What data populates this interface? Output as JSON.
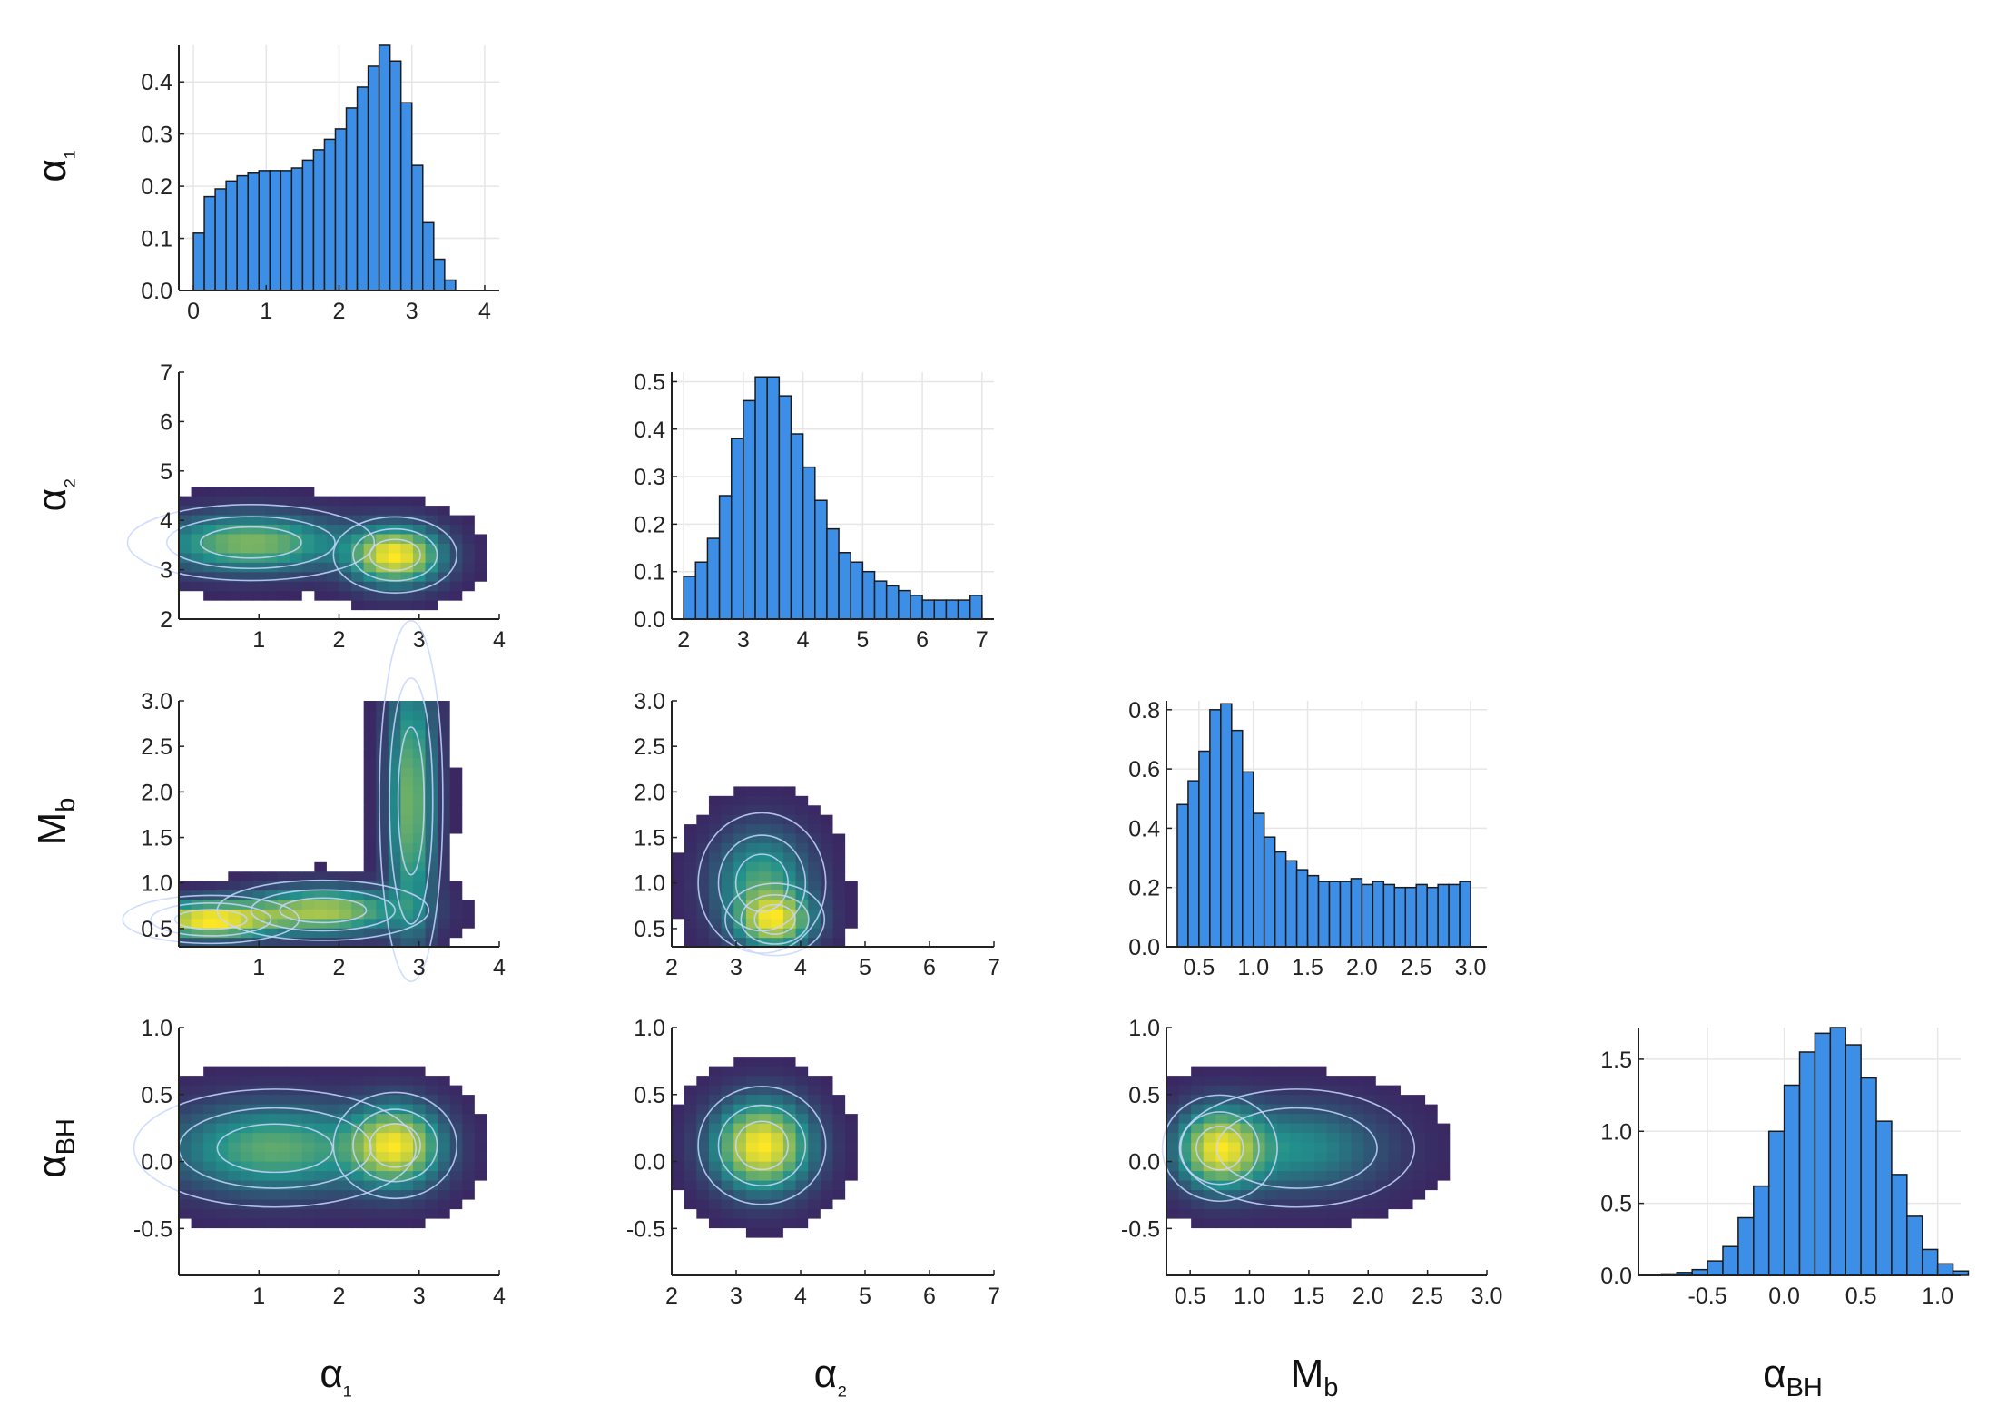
{
  "figure": {
    "type": "corner-plot",
    "colors": {
      "bar_fill": "#3d8ee6",
      "bar_edge": "#1b1b1b",
      "heat_low": "#440154",
      "heat_mid": "#21918c",
      "heat_high": "#fde725",
      "contour": "#c8d6ff",
      "grid": "#e6e6e6"
    },
    "variables": [
      {
        "key": "a1",
        "label": "α₁",
        "base": "α",
        "sub": "₁",
        "range": [
          0,
          4.2
        ]
      },
      {
        "key": "a2",
        "label": "α₂",
        "base": "α",
        "sub": "₂",
        "range": [
          2,
          7
        ]
      },
      {
        "key": "mb",
        "label": "Mb",
        "base": "M",
        "sub": "b",
        "range": [
          0.3,
          3.0
        ]
      },
      {
        "key": "abh",
        "label": "αBH",
        "base": "α",
        "sub": "BH",
        "range": [
          -0.85,
          1.0
        ]
      }
    ]
  },
  "chart_data": [
    {
      "type": "bar",
      "id": "hist-a1",
      "var": "a1",
      "bin_start": 0,
      "bin_width": 0.15,
      "values": [
        0.11,
        0.18,
        0.195,
        0.21,
        0.22,
        0.225,
        0.23,
        0.23,
        0.23,
        0.235,
        0.25,
        0.27,
        0.29,
        0.31,
        0.35,
        0.39,
        0.43,
        0.47,
        0.44,
        0.36,
        0.24,
        0.13,
        0.06,
        0.02
      ],
      "xlim": [
        -0.2,
        4.2
      ],
      "ylim": [
        0,
        0.47
      ],
      "xticks": [
        0,
        1,
        2,
        3,
        4
      ],
      "xtick_labels": [
        "0",
        "1",
        "2",
        "3",
        "4"
      ],
      "yticks": [
        0,
        0.1,
        0.2,
        0.3,
        0.4
      ],
      "ytick_labels": [
        "0.0",
        "0.1",
        "0.2",
        "0.3",
        "0.4"
      ]
    },
    {
      "type": "bar",
      "id": "hist-a2",
      "var": "a2",
      "bin_start": 2,
      "bin_width": 0.2,
      "values": [
        0.09,
        0.12,
        0.17,
        0.26,
        0.38,
        0.46,
        0.51,
        0.51,
        0.47,
        0.39,
        0.32,
        0.25,
        0.19,
        0.14,
        0.12,
        0.1,
        0.08,
        0.07,
        0.06,
        0.05,
        0.04,
        0.04,
        0.04,
        0.04,
        0.05
      ],
      "xlim": [
        1.8,
        7.2
      ],
      "ylim": [
        0,
        0.52
      ],
      "xticks": [
        2,
        3,
        4,
        5,
        6,
        7
      ],
      "xtick_labels": [
        "2",
        "3",
        "4",
        "5",
        "6",
        "7"
      ],
      "yticks": [
        0,
        0.1,
        0.2,
        0.3,
        0.4,
        0.5
      ],
      "ytick_labels": [
        "0.0",
        "0.1",
        "0.2",
        "0.3",
        "0.4",
        "0.5"
      ]
    },
    {
      "type": "bar",
      "id": "hist-mb",
      "var": "mb",
      "bin_start": 0.3,
      "bin_width": 0.1,
      "values": [
        0.48,
        0.56,
        0.66,
        0.8,
        0.82,
        0.73,
        0.59,
        0.45,
        0.37,
        0.32,
        0.29,
        0.26,
        0.24,
        0.22,
        0.22,
        0.22,
        0.23,
        0.21,
        0.22,
        0.21,
        0.2,
        0.2,
        0.21,
        0.2,
        0.21,
        0.21,
        0.22
      ],
      "xlim": [
        0.2,
        3.15
      ],
      "ylim": [
        0,
        0.83
      ],
      "xticks": [
        0.5,
        1.0,
        1.5,
        2.0,
        2.5,
        3.0
      ],
      "xtick_labels": [
        "0.5",
        "1.0",
        "1.5",
        "2.0",
        "2.5",
        "3.0"
      ],
      "yticks": [
        0,
        0.2,
        0.4,
        0.6,
        0.8
      ],
      "ytick_labels": [
        "0.0",
        "0.2",
        "0.4",
        "0.6",
        "0.8"
      ]
    },
    {
      "type": "bar",
      "id": "hist-abh",
      "var": "abh",
      "bin_start": -0.9,
      "bin_width": 0.1,
      "values": [
        0.0,
        0.01,
        0.02,
        0.04,
        0.1,
        0.2,
        0.4,
        0.62,
        1.0,
        1.32,
        1.55,
        1.68,
        1.72,
        1.6,
        1.37,
        1.07,
        0.7,
        0.41,
        0.18,
        0.08,
        0.03
      ],
      "xlim": [
        -0.95,
        1.15
      ],
      "ylim": [
        0,
        1.72
      ],
      "xticks": [
        -0.5,
        0,
        0.5,
        1.0
      ],
      "xtick_labels": [
        "-0.5",
        "0.0",
        "0.5",
        "1.0"
      ],
      "yticks": [
        0,
        0.5,
        1.0,
        1.5
      ],
      "ytick_labels": [
        "0.0",
        "0.5",
        "1.0",
        "1.5"
      ]
    },
    {
      "type": "heatmap",
      "id": "hm-a2-a1",
      "x": "a1",
      "y": "a2",
      "peaks": [
        {
          "x": 2.7,
          "y": 3.3,
          "sx": 0.35,
          "sy": 0.35,
          "amp": 1.0
        },
        {
          "x": 0.9,
          "y": 3.55,
          "sx": 0.7,
          "sy": 0.35,
          "amp": 0.6
        }
      ],
      "xlim": [
        0,
        4
      ],
      "ylim": [
        2,
        7
      ],
      "xticks": [
        1,
        2,
        3,
        4
      ],
      "xtick_labels": [
        "1",
        "2",
        "3",
        "4"
      ],
      "yticks": [
        2,
        3,
        4,
        5,
        6,
        7
      ],
      "ytick_labels": [
        "2",
        "3",
        "4",
        "5",
        "6",
        "7"
      ]
    },
    {
      "type": "heatmap",
      "id": "hm-mb-a1",
      "x": "a1",
      "y": "mb",
      "peaks": [
        {
          "x": 0.4,
          "y": 0.6,
          "sx": 0.5,
          "sy": 0.12,
          "amp": 1.0
        },
        {
          "x": 1.8,
          "y": 0.7,
          "sx": 0.6,
          "sy": 0.15,
          "amp": 0.7
        },
        {
          "x": 2.9,
          "y": 1.9,
          "sx": 0.18,
          "sy": 0.9,
          "amp": 0.55
        }
      ],
      "xlim": [
        0,
        4
      ],
      "ylim": [
        0.3,
        3.0
      ],
      "xticks": [
        1,
        2,
        3,
        4
      ],
      "xtick_labels": [
        "1",
        "2",
        "3",
        "4"
      ],
      "yticks": [
        0.5,
        1.0,
        1.5,
        2.0,
        2.5,
        3.0
      ],
      "ytick_labels": [
        "0.5",
        "1.0",
        "1.5",
        "2.0",
        "2.5",
        "3.0"
      ]
    },
    {
      "type": "heatmap",
      "id": "hm-mb-a2",
      "x": "a2",
      "y": "mb",
      "peaks": [
        {
          "x": 3.6,
          "y": 0.6,
          "sx": 0.35,
          "sy": 0.18,
          "amp": 1.0
        },
        {
          "x": 3.4,
          "y": 1.0,
          "sx": 0.45,
          "sy": 0.35,
          "amp": 0.55
        }
      ],
      "xlim": [
        2,
        7
      ],
      "ylim": [
        0.3,
        3.0
      ],
      "xticks": [
        2,
        3,
        4,
        5,
        6,
        7
      ],
      "xtick_labels": [
        "2",
        "3",
        "4",
        "5",
        "6",
        "7"
      ],
      "yticks": [
        0.5,
        1.0,
        1.5,
        2.0,
        2.5,
        3.0
      ],
      "ytick_labels": [
        "0.5",
        "1.0",
        "1.5",
        "2.0",
        "2.5",
        "3.0"
      ]
    },
    {
      "type": "heatmap",
      "id": "hm-abh-a1",
      "x": "a1",
      "y": "abh",
      "peaks": [
        {
          "x": 2.7,
          "y": 0.12,
          "sx": 0.35,
          "sy": 0.18,
          "amp": 1.0
        },
        {
          "x": 1.2,
          "y": 0.1,
          "sx": 0.8,
          "sy": 0.2,
          "amp": 0.55
        }
      ],
      "xlim": [
        0,
        4
      ],
      "ylim": [
        -0.85,
        1.0
      ],
      "xticks": [
        1,
        2,
        3,
        4
      ],
      "xtick_labels": [
        "1",
        "2",
        "3",
        "4"
      ],
      "yticks": [
        -0.5,
        0,
        0.5,
        1.0
      ],
      "ytick_labels": [
        "-0.5",
        "0.0",
        "0.5",
        "1.0"
      ]
    },
    {
      "type": "heatmap",
      "id": "hm-abh-a2",
      "x": "a2",
      "y": "abh",
      "peaks": [
        {
          "x": 3.4,
          "y": 0.12,
          "sx": 0.45,
          "sy": 0.2,
          "amp": 1.0
        }
      ],
      "xlim": [
        2,
        7
      ],
      "ylim": [
        -0.85,
        1.0
      ],
      "xticks": [
        2,
        3,
        4,
        5,
        6,
        7
      ],
      "xtick_labels": [
        "2",
        "3",
        "4",
        "5",
        "6",
        "7"
      ],
      "yticks": [
        -0.5,
        0,
        0.5,
        1.0
      ],
      "ytick_labels": [
        "-0.5",
        "0.0",
        "0.5",
        "1.0"
      ]
    },
    {
      "type": "heatmap",
      "id": "hm-abh-mb",
      "x": "mb",
      "y": "abh",
      "peaks": [
        {
          "x": 0.75,
          "y": 0.1,
          "sx": 0.22,
          "sy": 0.18,
          "amp": 1.0
        },
        {
          "x": 1.4,
          "y": 0.1,
          "sx": 0.45,
          "sy": 0.2,
          "amp": 0.35
        }
      ],
      "xlim": [
        0.3,
        3.0
      ],
      "ylim": [
        -0.85,
        1.0
      ],
      "xticks": [
        0.5,
        1.0,
        1.5,
        2.0,
        2.5,
        3.0
      ],
      "xtick_labels": [
        "0.5",
        "1.0",
        "1.5",
        "2.0",
        "2.5",
        "3.0"
      ],
      "yticks": [
        -0.5,
        0,
        0.5,
        1.0
      ],
      "ytick_labels": [
        "-0.5",
        "0.0",
        "0.5",
        "1.0"
      ]
    }
  ]
}
